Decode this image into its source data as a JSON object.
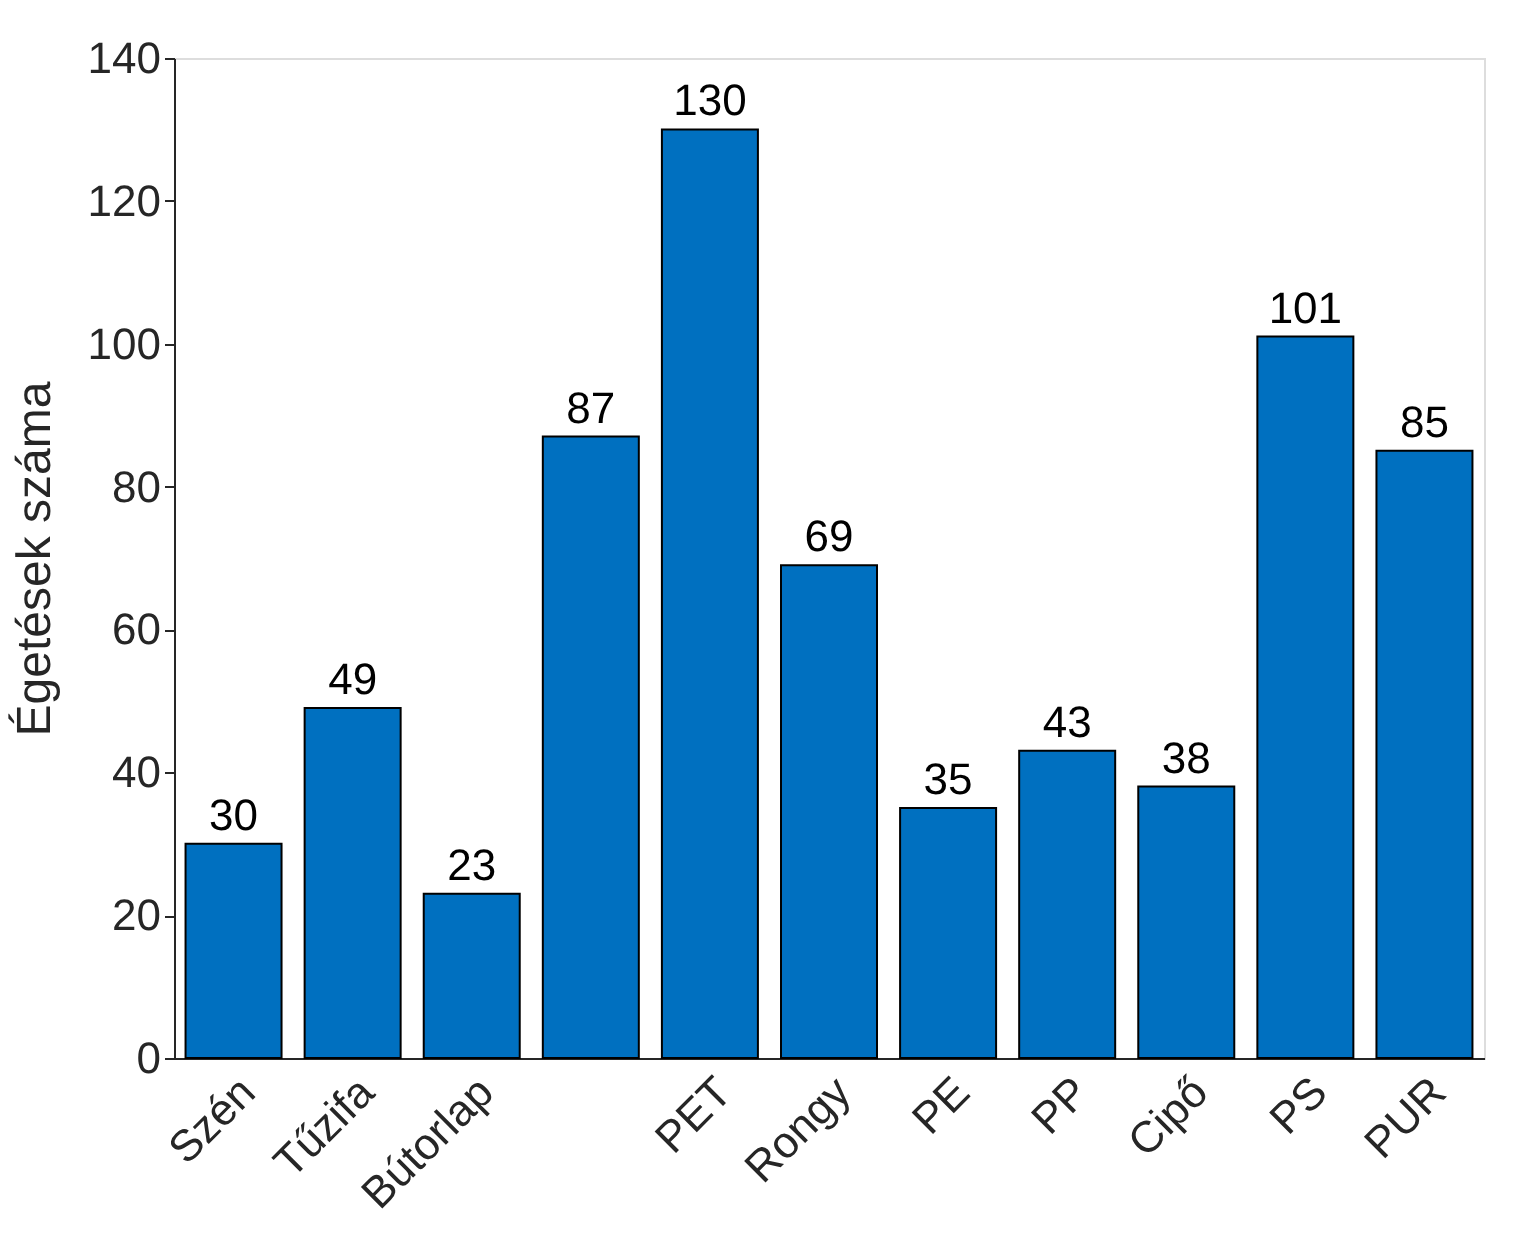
{
  "chart_data": {
    "type": "bar",
    "ylabel": "Égetések száma",
    "categories": [
      "Szén",
      "Tűzifa",
      "Bútorlap",
      null,
      "PET",
      "Rongy",
      "PE",
      "PP",
      "Cipő",
      "PS",
      "PUR"
    ],
    "values": [
      30,
      49,
      23,
      87,
      130,
      69,
      35,
      43,
      38,
      101,
      85
    ],
    "color": "#0070c0",
    "ylim": [
      0,
      140
    ],
    "yticks": [
      0,
      20,
      40,
      60,
      80,
      100,
      120,
      140
    ],
    "grid": false,
    "data_labels": true
  }
}
